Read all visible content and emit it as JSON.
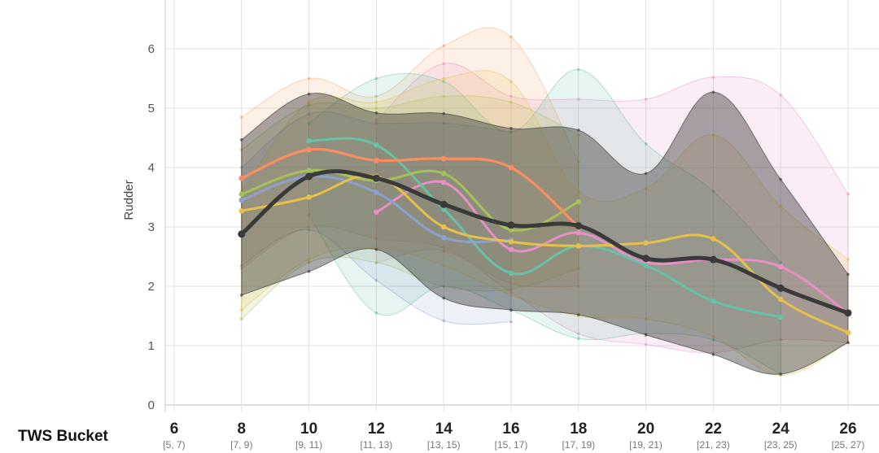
{
  "chart_data": {
    "type": "line",
    "ylabel": "Rudder",
    "xlabel": "TWS Bucket",
    "ylim": [
      0,
      6.7
    ],
    "xlim": [
      5.5,
      27
    ],
    "y_ticks": [
      0,
      1,
      2,
      3,
      4,
      5,
      6
    ],
    "x_ticks": [
      {
        "value": 6,
        "label": "6",
        "sub": "[5, 7)"
      },
      {
        "value": 8,
        "label": "8",
        "sub": "[7, 9)"
      },
      {
        "value": 10,
        "label": "10",
        "sub": "[9, 11)"
      },
      {
        "value": 12,
        "label": "12",
        "sub": "[11, 13)"
      },
      {
        "value": 14,
        "label": "14",
        "sub": "[13, 15)"
      },
      {
        "value": 16,
        "label": "16",
        "sub": "[15, 17)"
      },
      {
        "value": 18,
        "label": "18",
        "sub": "[17, 19)"
      },
      {
        "value": 20,
        "label": "20",
        "sub": "[19, 21)"
      },
      {
        "value": 22,
        "label": "22",
        "sub": "[21, 23)"
      },
      {
        "value": 24,
        "label": "24",
        "sub": "[23, 25)"
      },
      {
        "value": 26,
        "label": "26",
        "sub": "[25, 27)"
      }
    ],
    "grid": true,
    "series": [
      {
        "color": "#f2a36b",
        "x": [
          8,
          10,
          12,
          14,
          16,
          18
        ],
        "y": [
          3.82,
          4.3,
          4.12,
          4.15,
          4.0,
          3.0
        ],
        "upper": [
          4.85,
          5.5,
          5.2,
          6.05,
          6.2,
          4.1
        ],
        "lower": [
          2.3,
          3.0,
          2.8,
          2.65,
          2.05,
          2.0
        ]
      },
      {
        "color": "#e88fc7",
        "x": [
          12,
          14,
          16,
          18,
          20,
          22,
          24,
          26
        ],
        "y": [
          3.25,
          3.75,
          2.62,
          2.9,
          2.4,
          2.45,
          2.33,
          1.55
        ],
        "upper": [
          4.8,
          5.75,
          5.2,
          5.15,
          5.15,
          5.52,
          5.22,
          3.55
        ],
        "lower": [
          2.4,
          2.6,
          1.9,
          1.2,
          1.02,
          0.88,
          1.1,
          1.05
        ]
      },
      {
        "color": "#66c2a5",
        "x": [
          10,
          12,
          14,
          16,
          18,
          20,
          22,
          24
        ],
        "y": [
          4.45,
          4.38,
          3.3,
          2.22,
          2.68,
          2.35,
          1.75,
          1.48
        ],
        "upper": [
          4.75,
          5.5,
          5.45,
          4.6,
          5.65,
          4.4,
          3.6,
          2.4
        ],
        "lower": [
          3.2,
          1.55,
          2.0,
          1.6,
          1.12,
          1.2,
          1.1,
          0.52
        ]
      },
      {
        "color": "#a6c05a",
        "x": [
          8,
          10,
          12,
          14,
          16,
          18
        ],
        "y": [
          3.55,
          3.95,
          3.78,
          3.9,
          2.95,
          3.42
        ],
        "upper": [
          4.3,
          5.05,
          5.0,
          5.2,
          5.1,
          4.55
        ],
        "lower": [
          1.45,
          2.4,
          2.4,
          2.0,
          1.95,
          2.3
        ]
      },
      {
        "color": "#8da0cb",
        "x": [
          8,
          10,
          12,
          14,
          16
        ],
        "y": [
          3.45,
          3.85,
          3.58,
          2.82,
          2.78
        ],
        "upper": [
          4.0,
          4.9,
          4.75,
          4.75,
          4.6
        ],
        "lower": [
          2.35,
          2.95,
          2.1,
          1.42,
          1.4
        ]
      },
      {
        "color": "#e5c04a",
        "x": [
          8,
          10,
          12,
          14,
          16,
          18,
          20,
          22,
          24,
          26
        ],
        "y": [
          3.27,
          3.5,
          3.85,
          3.0,
          2.75,
          2.68,
          2.73,
          2.8,
          1.78,
          1.22
        ],
        "upper": [
          3.6,
          5.1,
          5.1,
          5.5,
          5.45,
          3.6,
          3.65,
          4.55,
          3.35,
          2.45
        ],
        "lower": [
          1.6,
          2.45,
          2.65,
          2.35,
          1.85,
          1.5,
          1.45,
          1.15,
          0.5,
          1.05
        ]
      },
      {
        "color": "#fc8d62",
        "x": [
          8,
          10,
          12,
          14,
          16,
          18
        ],
        "y": [
          3.82,
          4.3,
          4.12,
          4.15,
          4.0,
          3.0
        ],
        "upper": [
          3.82,
          4.3,
          4.12,
          4.15,
          4.0,
          3.0
        ],
        "lower": [
          3.82,
          4.3,
          4.12,
          4.15,
          4.0,
          3.0
        ]
      },
      {
        "color": "#333333",
        "x": [
          8,
          10,
          12,
          14,
          16,
          18,
          20,
          22,
          24,
          26
        ],
        "y": [
          2.88,
          3.85,
          3.82,
          3.38,
          3.03,
          3.02,
          2.47,
          2.45,
          1.97,
          1.55
        ],
        "upper": [
          4.47,
          5.24,
          4.92,
          4.91,
          4.66,
          4.63,
          3.9,
          5.27,
          3.8,
          2.2
        ],
        "lower": [
          1.85,
          2.25,
          2.62,
          1.8,
          1.6,
          1.52,
          1.18,
          0.85,
          0.52,
          1.05
        ]
      }
    ]
  }
}
